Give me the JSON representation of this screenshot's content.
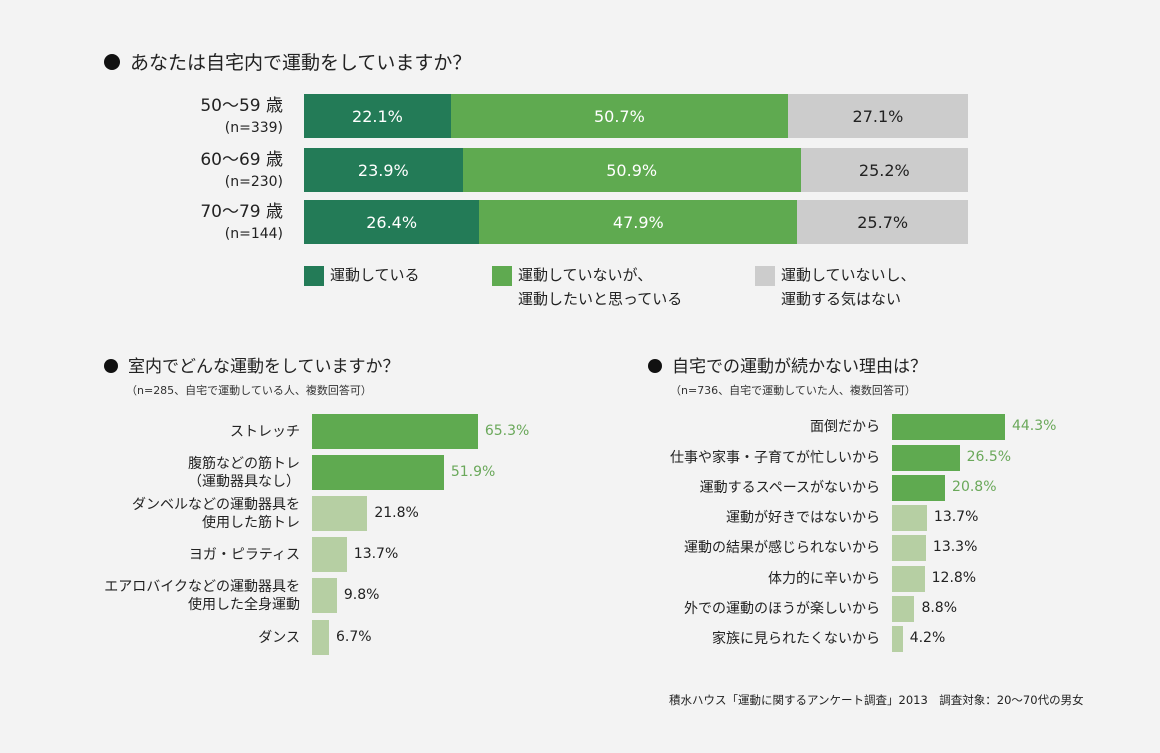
{
  "colors": {
    "dark_green": "#237b57",
    "green": "#5faa50",
    "gray": "#cccccc",
    "light_green": "#b6cfa3",
    "green_text": "#6aa85a"
  },
  "chart_data": [
    {
      "type": "bar",
      "orientation": "horizontal",
      "stacked": true,
      "percent": true,
      "title": "あなたは自宅内で運動をしていますか？",
      "categories": [
        "50〜59 歳",
        "60〜69 歳",
        "70〜79 歳"
      ],
      "sample_sizes": [
        "(n=339)",
        "(n=230)",
        "(n=144)"
      ],
      "series": [
        {
          "name": "運動している",
          "values": [
            22.1,
            23.9,
            26.4
          ],
          "labels": [
            "22.1%",
            "23.9%",
            "26.4%"
          ]
        },
        {
          "name": "運動していないが、運動したいと思っている",
          "name_lines": [
            "運動していないが、",
            "運動したいと思っている"
          ],
          "values": [
            50.7,
            50.9,
            47.9
          ],
          "labels": [
            "50.7%",
            "50.9%",
            "47.9%"
          ]
        },
        {
          "name": "運動していないし、運動する気はない",
          "name_lines": [
            "運動していないし、",
            "運動する気はない"
          ],
          "values": [
            27.1,
            25.2,
            25.7
          ],
          "labels": [
            "27.1%",
            "25.2%",
            "25.7%"
          ]
        }
      ],
      "legend": "bottom"
    },
    {
      "type": "bar",
      "orientation": "horizontal",
      "title": "室内でどんな運動をしていますか？",
      "subtitle": "（n=285、自宅で運動している人、複数回答可）",
      "categories": [
        [
          "ストレッチ"
        ],
        [
          "腹筋などの筋トレ",
          "（運動器具なし）"
        ],
        [
          "ダンベルなどの運動器具を",
          "使用した筋トレ"
        ],
        [
          "ヨガ・ピラティス"
        ],
        [
          "エアロバイクなどの運動器具を",
          "使用した全身運動"
        ],
        [
          "ダンス"
        ]
      ],
      "values": [
        65.3,
        51.9,
        21.8,
        13.7,
        9.8,
        6.7
      ],
      "labels": [
        "65.3%",
        "51.9%",
        "21.8%",
        "13.7%",
        "9.8%",
        "6.7%"
      ],
      "highlight_count": 2
    },
    {
      "type": "bar",
      "orientation": "horizontal",
      "title": "自宅での運動が続かない理由は？",
      "subtitle": "（n=736、自宅で運動していた人、複数回答可）",
      "categories": [
        [
          "面倒だから"
        ],
        [
          "仕事や家事・子育てが忙しいから"
        ],
        [
          "運動するスペースがないから"
        ],
        [
          "運動が好きではないから"
        ],
        [
          "運動の結果が感じられないから"
        ],
        [
          "体力的に辛いから"
        ],
        [
          "外での運動のほうが楽しいから"
        ],
        [
          "家族に見られたくないから"
        ]
      ],
      "values": [
        44.3,
        26.5,
        20.8,
        13.7,
        13.3,
        12.8,
        8.8,
        4.2
      ],
      "labels": [
        "44.3%",
        "26.5%",
        "20.8%",
        "13.7%",
        "13.3%",
        "12.8%",
        "8.8%",
        "4.2%"
      ],
      "highlight_count": 3
    }
  ],
  "source": "積水ハウス「運動に関するアンケート調査」2013　調査対象：20〜70代の男女"
}
